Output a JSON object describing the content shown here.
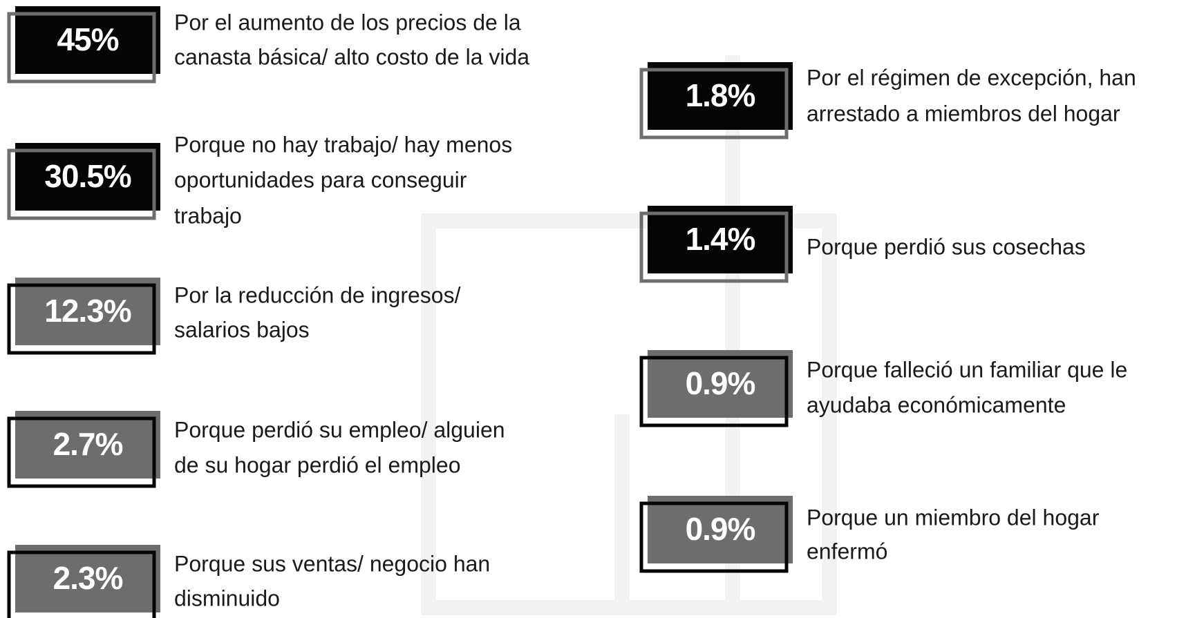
{
  "items": [
    {
      "value": "45%",
      "style": "dark",
      "lines": [
        "Por el aumento de los precios de la",
        "canasta básica/ alto costo de la vida"
      ]
    },
    {
      "value": "30.5%",
      "style": "dark",
      "lines": [
        "Porque no hay trabajo/ hay menos",
        "oportunidades para conseguir",
        "trabajo"
      ]
    },
    {
      "value": "12.3%",
      "style": "gray",
      "lines": [
        "Por la reducción de ingresos/",
        "salarios bajos"
      ]
    },
    {
      "value": "2.7%",
      "style": "gray",
      "lines": [
        "Porque perdió su empleo/ alguien",
        "de su hogar perdió el empleo"
      ]
    },
    {
      "value": "2.3%",
      "style": "gray",
      "lines": [
        "Porque sus ventas/ negocio han",
        "disminuido"
      ]
    },
    {
      "value": "1.8%",
      "style": "dark",
      "lines": [
        "Por el régimen de excepción, han",
        "arrestado a miembros del hogar"
      ]
    },
    {
      "value": "1.4%",
      "style": "dark",
      "lines": [
        "Porque perdió sus cosechas"
      ]
    },
    {
      "value": "0.9%",
      "style": "gray",
      "lines": [
        "Porque falleció un familiar que le",
        "ayudaba económicamente"
      ]
    },
    {
      "value": "0.9%",
      "style": "gray",
      "lines": [
        "Porque un miembro del hogar",
        "enfermó"
      ]
    }
  ]
}
